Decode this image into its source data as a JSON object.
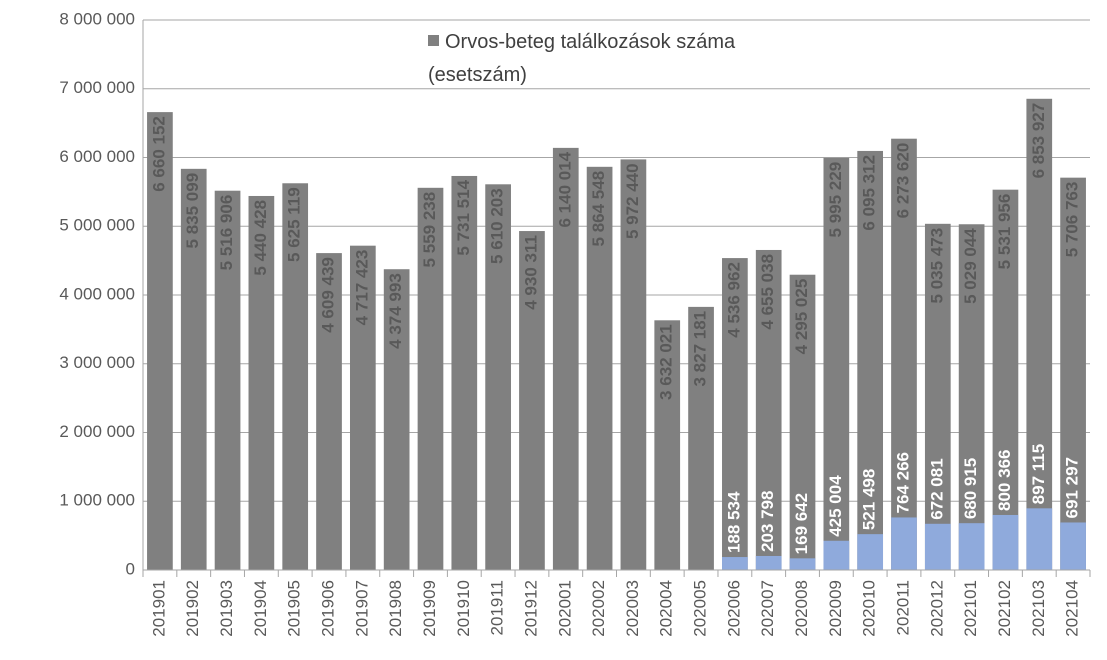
{
  "chart_data": {
    "type": "bar",
    "categories": [
      "201901",
      "201902",
      "201903",
      "201904",
      "201905",
      "201906",
      "201907",
      "201908",
      "201909",
      "201910",
      "201911",
      "201912",
      "202001",
      "202002",
      "202003",
      "202004",
      "202005",
      "202006",
      "202007",
      "202008",
      "202009",
      "202010",
      "202011",
      "202012",
      "202101",
      "202102",
      "202103",
      "202104"
    ],
    "series": [
      {
        "name": "Orvos-beteg találkozások száma (esetszám)",
        "color": "#808080",
        "values": [
          6660152,
          5835099,
          5516906,
          5440428,
          5625119,
          4609439,
          4717423,
          4374993,
          5559238,
          5731514,
          5610203,
          4930311,
          6140014,
          5864548,
          5972440,
          3632021,
          3827181,
          4536962,
          4655038,
          4295025,
          5995229,
          6095312,
          6273620,
          5035473,
          5029044,
          5531956,
          6853927,
          5706763
        ],
        "value_labels": [
          "6 660 152",
          "5 835 099",
          "5 516 906",
          "5 440 428",
          "5 625 119",
          "4 609 439",
          "4 717 423",
          "4 374 993",
          "5 559 238",
          "5 731 514",
          "5 610 203",
          "4 930 311",
          "6 140 014",
          "5 864 548",
          "5 972 440",
          "3 632 021",
          "3 827 181",
          "4 536 962",
          "4 655 038",
          "4 295 025",
          "5 995 229",
          "6 095 312",
          "6 273 620",
          "5 035 473",
          "5 029 044",
          "5 531 956",
          "6 853 927",
          "5 706 763"
        ]
      },
      {
        "color": "#8faadc",
        "values": [
          null,
          null,
          null,
          null,
          null,
          null,
          null,
          null,
          null,
          null,
          null,
          null,
          null,
          null,
          null,
          null,
          null,
          188534,
          203798,
          169642,
          425004,
          521498,
          764266,
          672081,
          680915,
          800366,
          897115,
          691297
        ],
        "value_labels": [
          null,
          null,
          null,
          null,
          null,
          null,
          null,
          null,
          null,
          null,
          null,
          null,
          null,
          null,
          null,
          null,
          null,
          "188 534",
          "203 798",
          "169 642",
          "425 004",
          "521 498",
          "764 266",
          "672 081",
          "680 915",
          "800 366",
          "897 115",
          "691 297"
        ]
      }
    ],
    "ylim": [
      0,
      8000000
    ],
    "yticks": [
      0,
      {
        "value": 1000000,
        "label": "1 000 000"
      },
      {
        "value": 2000000,
        "label": "2 000 000"
      },
      {
        "value": 3000000,
        "label": "3 000 000"
      },
      {
        "value": 4000000,
        "label": "4 000 000"
      },
      {
        "value": 5000000,
        "label": "5 000 000"
      },
      {
        "value": 6000000,
        "label": "6 000 000"
      },
      {
        "value": 7000000,
        "label": "7 000 000"
      },
      {
        "value": 8000000,
        "label": "8 000 000"
      }
    ],
    "grid": true,
    "legend": "top"
  }
}
